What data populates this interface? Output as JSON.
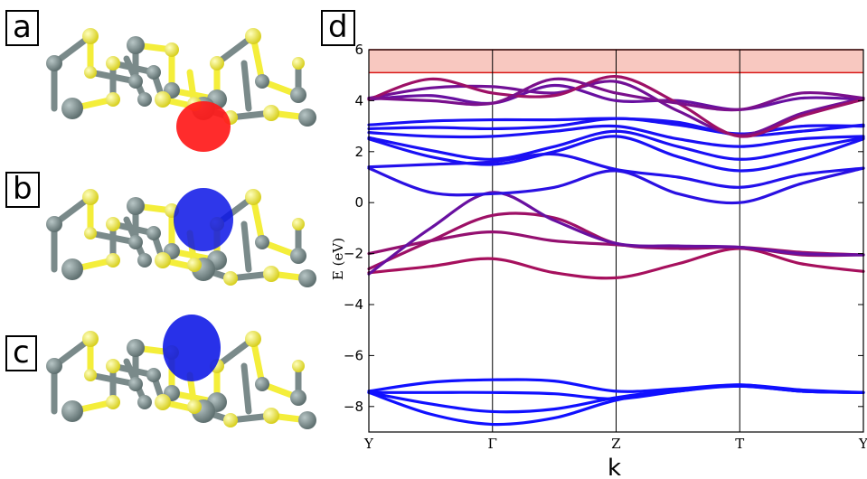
{
  "panels": {
    "a": "a",
    "b": "b",
    "c": "c",
    "d": "d"
  },
  "colors": {
    "atom_dark": "#5f7070",
    "atom_light": "#f4ee3a",
    "orbital_a": "#ff1a1a",
    "orbital_bc": "#0a14e6",
    "band_low": "#1010ff",
    "band_high": "#c01040",
    "highlight_band": "#f8c8c0"
  },
  "chart_data": {
    "type": "line",
    "xlabel": "k",
    "ylabel": "E (eV)",
    "ylim": [
      -9,
      6
    ],
    "yticks": [
      -8,
      -6,
      -4,
      -2,
      0,
      2,
      4,
      6
    ],
    "ytick_labels": [
      "−8",
      "−6",
      "−4",
      "−2",
      "0",
      "2",
      "4",
      "6"
    ],
    "kpoints": [
      "Y",
      "Γ",
      "Z",
      "T",
      "Y"
    ],
    "kpositions": [
      0,
      1,
      2,
      3,
      4
    ],
    "shaded_region": [
      5.1,
      6.0
    ],
    "series": [
      {
        "character": 0.0,
        "x": [
          0,
          0.5,
          1,
          1.5,
          2,
          2.5,
          3,
          3.5,
          4
        ],
        "y": [
          -7.4,
          -7.05,
          -6.95,
          -7.0,
          -7.4,
          -7.3,
          -7.15,
          -7.35,
          -7.45
        ]
      },
      {
        "character": 0.0,
        "x": [
          0,
          0.5,
          1,
          1.5,
          2,
          2.5,
          3,
          3.5,
          4
        ],
        "y": [
          -7.45,
          -7.45,
          -7.45,
          -7.5,
          -7.7,
          -7.4,
          -7.15,
          -7.4,
          -7.45
        ]
      },
      {
        "character": 0.0,
        "x": [
          0,
          0.5,
          1,
          1.5,
          2,
          2.5,
          3,
          3.5,
          4
        ],
        "y": [
          -7.45,
          -7.9,
          -8.2,
          -8.1,
          -7.65,
          -7.35,
          -7.2,
          -7.4,
          -7.45
        ]
      },
      {
        "character": 0.0,
        "x": [
          0,
          0.5,
          1,
          1.5,
          2,
          2.5,
          3,
          3.5,
          4
        ],
        "y": [
          -7.45,
          -8.3,
          -8.7,
          -8.45,
          -7.75,
          -7.4,
          -7.2,
          -7.4,
          -7.45
        ]
      },
      {
        "character": 0.8,
        "x": [
          0,
          0.5,
          1,
          1.5,
          2,
          2.5,
          3,
          3.5,
          4
        ],
        "y": [
          -2.6,
          -1.5,
          -0.5,
          -0.6,
          -1.6,
          -1.8,
          -1.75,
          -1.95,
          -2.05
        ]
      },
      {
        "character": 0.85,
        "x": [
          0,
          0.5,
          1,
          1.5,
          2,
          2.5,
          3,
          3.5,
          4
        ],
        "y": [
          -2.75,
          -2.5,
          -2.2,
          -2.75,
          -2.95,
          -2.4,
          -1.8,
          -2.4,
          -2.7
        ]
      },
      {
        "character": 0.75,
        "x": [
          0,
          0.5,
          1,
          1.5,
          2,
          2.5,
          3,
          3.5,
          4
        ],
        "y": [
          -2.0,
          -1.5,
          -1.15,
          -1.5,
          -1.65,
          -1.8,
          -1.75,
          -2.05,
          -2.05
        ]
      },
      {
        "character": 0.5,
        "x": [
          0,
          0.5,
          1,
          1.5,
          2,
          2.5,
          3,
          3.5,
          4
        ],
        "y": [
          -2.8,
          -1.0,
          0.4,
          -0.7,
          -1.6,
          -1.7,
          -1.75,
          -2.0,
          -2.05
        ]
      },
      {
        "character": 0.15,
        "x": [
          0,
          0.5,
          1,
          1.5,
          2,
          2.5,
          3,
          3.5,
          4
        ],
        "y": [
          1.35,
          0.4,
          0.35,
          0.6,
          1.25,
          0.35,
          0.0,
          0.75,
          1.35
        ]
      },
      {
        "character": 0.1,
        "x": [
          0,
          0.5,
          1,
          1.5,
          2,
          2.5,
          3,
          3.5,
          4
        ],
        "y": [
          1.4,
          1.5,
          1.6,
          1.9,
          1.3,
          1.0,
          0.6,
          1.1,
          1.35
        ]
      },
      {
        "character": 0.05,
        "x": [
          0,
          0.5,
          1,
          1.5,
          2,
          2.5,
          3,
          3.5,
          4
        ],
        "y": [
          2.5,
          1.8,
          1.5,
          2.0,
          2.6,
          1.8,
          1.25,
          1.7,
          2.5
        ]
      },
      {
        "character": 0.05,
        "x": [
          0,
          0.5,
          1,
          1.5,
          2,
          2.5,
          3,
          3.5,
          4
        ],
        "y": [
          2.55,
          2.05,
          1.7,
          2.2,
          2.8,
          2.2,
          1.7,
          2.1,
          2.55
        ]
      },
      {
        "character": 0.05,
        "x": [
          0,
          0.5,
          1,
          1.5,
          2,
          2.5,
          3,
          3.5,
          4
        ],
        "y": [
          2.75,
          2.6,
          2.6,
          2.8,
          3.0,
          2.5,
          2.2,
          2.5,
          2.6
        ]
      },
      {
        "character": 0.05,
        "x": [
          0,
          0.5,
          1,
          1.5,
          2,
          2.5,
          3,
          3.5,
          4
        ],
        "y": [
          2.9,
          2.95,
          2.9,
          3.0,
          3.3,
          3.05,
          2.7,
          3.0,
          3.0
        ]
      },
      {
        "character": 0.05,
        "x": [
          0,
          0.5,
          1,
          1.5,
          2,
          2.5,
          3,
          3.5,
          4
        ],
        "y": [
          3.05,
          3.2,
          3.25,
          3.25,
          3.3,
          3.15,
          2.65,
          2.8,
          3.05
        ]
      },
      {
        "character": 0.5,
        "x": [
          0,
          0.5,
          1,
          1.5,
          2,
          2.5,
          3,
          3.5,
          4
        ],
        "y": [
          4.05,
          4.2,
          3.9,
          4.6,
          4.0,
          4.0,
          3.65,
          4.1,
          4.05
        ]
      },
      {
        "character": 0.55,
        "x": [
          0,
          0.5,
          1,
          1.5,
          2,
          2.5,
          3,
          3.5,
          4
        ],
        "y": [
          4.1,
          4.5,
          4.55,
          4.3,
          4.75,
          3.6,
          2.65,
          3.5,
          4.1
        ]
      },
      {
        "character": 0.8,
        "x": [
          0,
          0.5,
          1,
          1.5,
          2,
          2.5,
          3,
          3.5,
          4
        ],
        "y": [
          4.05,
          4.85,
          4.3,
          4.2,
          4.95,
          3.9,
          2.6,
          3.4,
          4.05
        ]
      },
      {
        "character": 0.6,
        "x": [
          0,
          0.5,
          1,
          1.5,
          2,
          2.5,
          3,
          3.5,
          4
        ],
        "y": [
          4.1,
          4.0,
          3.9,
          4.85,
          4.3,
          3.9,
          3.65,
          4.3,
          4.1
        ]
      }
    ]
  }
}
